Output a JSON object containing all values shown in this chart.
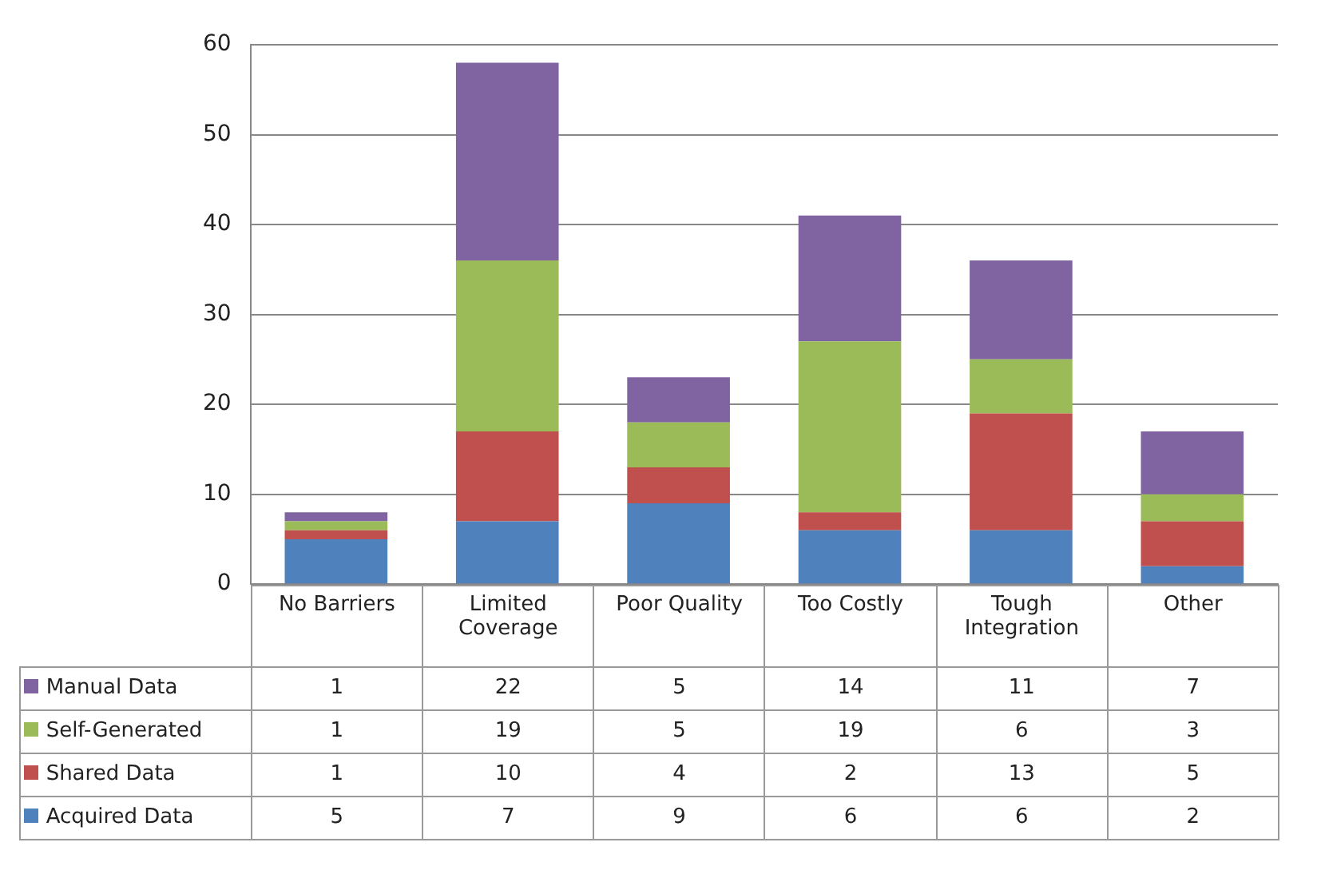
{
  "chart_data": {
    "type": "bar",
    "stacked": true,
    "categories": [
      "No Barriers",
      "Limited Coverage",
      "Poor Quality",
      "Too Costly",
      "Tough Integration",
      "Other"
    ],
    "series": [
      {
        "name": "Acquired Data",
        "color": "#4f81bd",
        "values": [
          5,
          7,
          9,
          6,
          6,
          2
        ]
      },
      {
        "name": "Shared Data",
        "color": "#c0504d",
        "values": [
          1,
          10,
          4,
          2,
          13,
          5
        ]
      },
      {
        "name": "Self-Generated",
        "color": "#9bbb59",
        "values": [
          1,
          19,
          5,
          19,
          6,
          3
        ]
      },
      {
        "name": "Manual Data",
        "color": "#8064a2",
        "values": [
          1,
          22,
          5,
          14,
          11,
          7
        ]
      }
    ],
    "ylim": [
      0,
      60
    ],
    "yticks": [
      0,
      10,
      20,
      30,
      40,
      50,
      60
    ],
    "grid": "y",
    "legend": "bottom",
    "data_labels": true
  }
}
